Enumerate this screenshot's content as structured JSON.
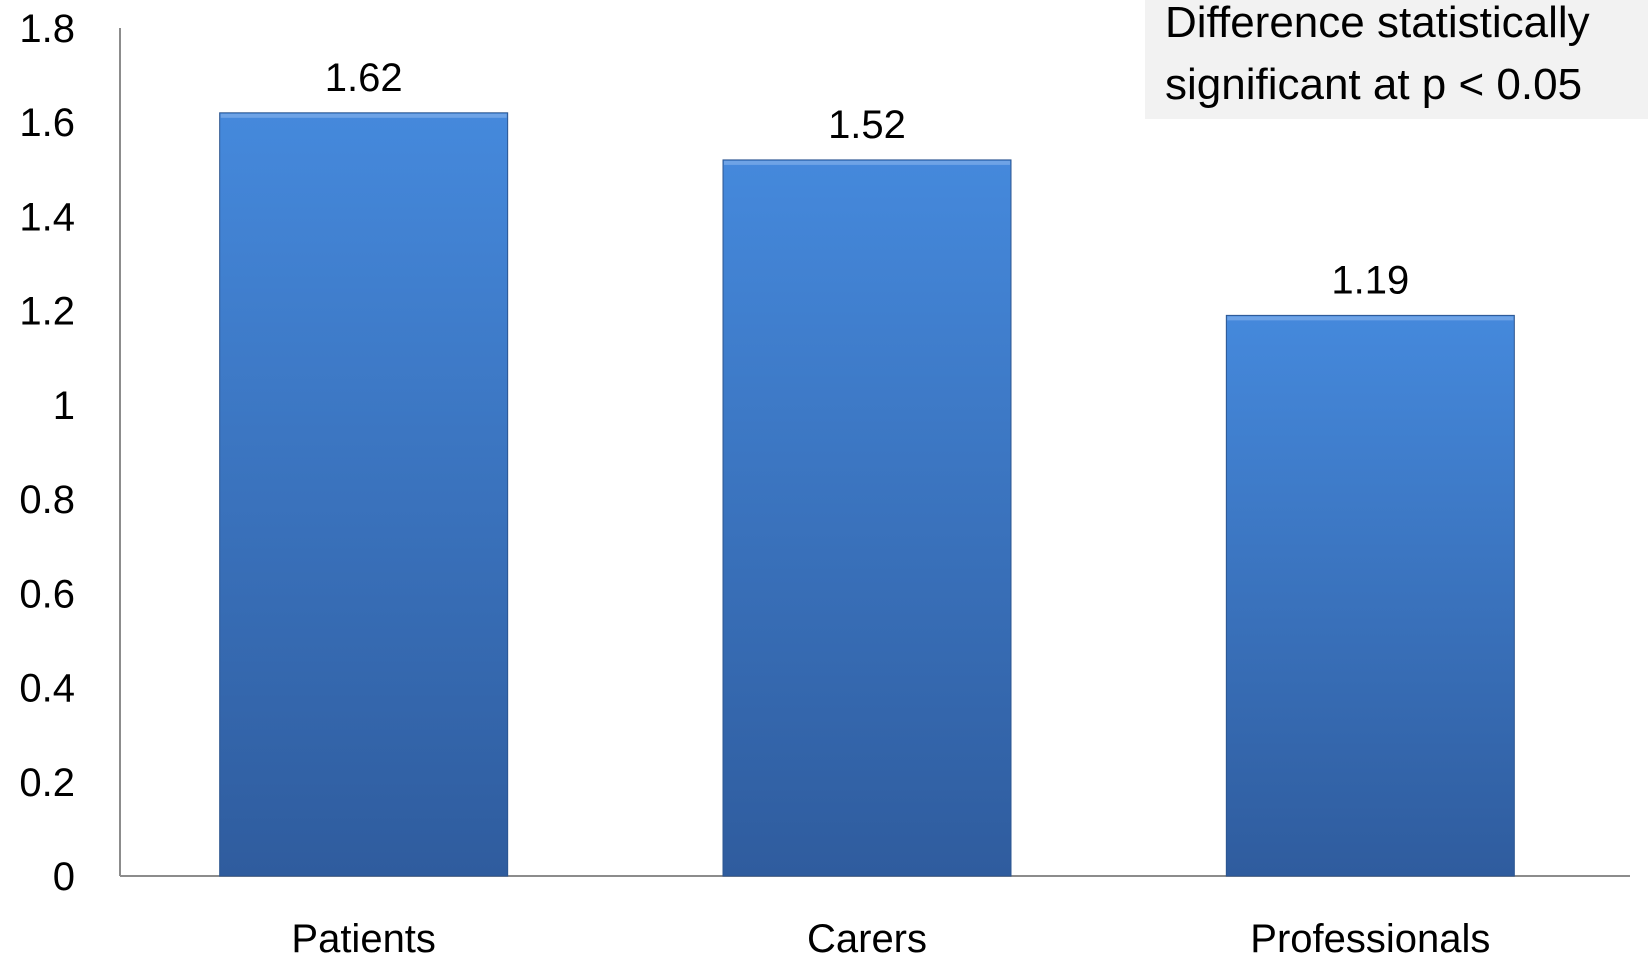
{
  "chart_data": {
    "type": "bar",
    "categories": [
      "Patients",
      "Carers",
      "Professionals"
    ],
    "values": [
      1.62,
      1.52,
      1.19
    ],
    "data_labels": [
      "1.62",
      "1.52",
      "1.19"
    ],
    "title": "",
    "xlabel": "",
    "ylabel": "",
    "ylim": [
      0,
      1.8
    ],
    "yticks": [
      "0",
      "0.2",
      "0.4",
      "0.6",
      "0.8",
      "1",
      "1.2",
      "1.4",
      "1.6",
      "1.8"
    ],
    "grid": false,
    "legend": "none",
    "bar_color_top": "#4589dc",
    "bar_color_bottom": "#2f5c9e",
    "annotation": "Difference statistically\nsignificant at p < 0.05"
  }
}
